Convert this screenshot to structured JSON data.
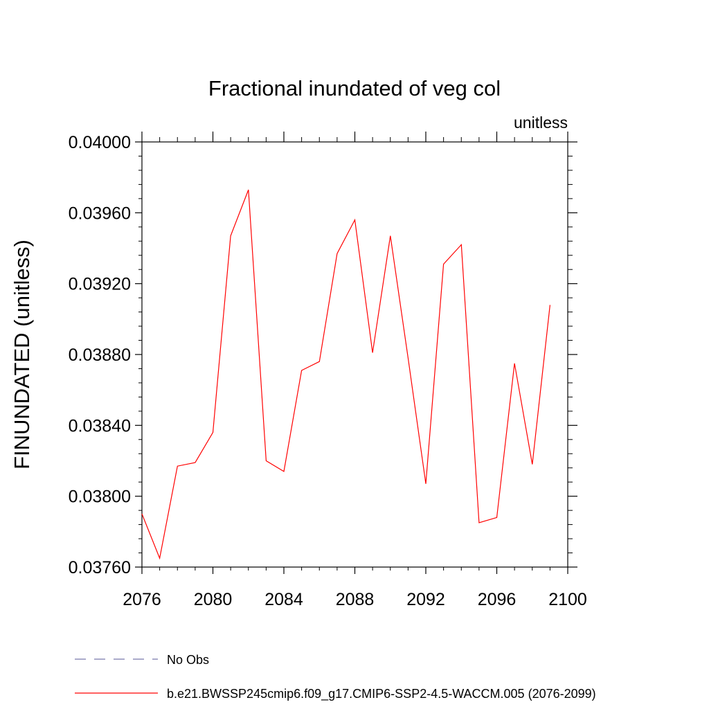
{
  "chart_data": {
    "type": "line",
    "title": "Fractional inundated of veg col",
    "units_label": "unitless",
    "xlabel": "",
    "ylabel": "FINUNDATED  (unitless)",
    "xlim": [
      2076,
      2100
    ],
    "ylim": [
      0.0376,
      0.04
    ],
    "x_ticks": [
      2076,
      2080,
      2084,
      2088,
      2092,
      2096,
      2100
    ],
    "x_tick_labels": [
      "2076",
      "2080",
      "2084",
      "2088",
      "2092",
      "2096",
      "2100"
    ],
    "y_ticks": [
      0.0376,
      0.038,
      0.0384,
      0.0388,
      0.0392,
      0.0396,
      0.04
    ],
    "y_tick_labels": [
      "0.03760",
      "0.03800",
      "0.03840",
      "0.03880",
      "0.03920",
      "0.03960",
      "0.04000"
    ],
    "grid": false,
    "legend_position": "bottom",
    "series": [
      {
        "name": "b.e21.BWSSP245cmip6.f09_g17.CMIP6-SSP2-4.5-WACCM.005 (2076-2099)",
        "color": "#ff0000",
        "style": "solid",
        "x": [
          2076,
          2077,
          2078,
          2079,
          2080,
          2081,
          2082,
          2083,
          2084,
          2085,
          2086,
          2087,
          2088,
          2089,
          2090,
          2091,
          2092,
          2093,
          2094,
          2095,
          2096,
          2097,
          2098,
          2099
        ],
        "y": [
          0.0379,
          0.03765,
          0.03817,
          0.03819,
          0.03836,
          0.03947,
          0.03973,
          0.0382,
          0.03814,
          0.03871,
          0.03876,
          0.03937,
          0.03956,
          0.03881,
          0.03947,
          0.03878,
          0.03807,
          0.03931,
          0.03942,
          0.03785,
          0.03788,
          0.03875,
          0.03818,
          0.03908
        ]
      }
    ],
    "legend": [
      {
        "label": "No Obs",
        "color": "#7777aa",
        "style": "dashed"
      },
      {
        "label": "b.e21.BWSSP245cmip6.f09_g17.CMIP6-SSP2-4.5-WACCM.005 (2076-2099)",
        "color": "#ff0000",
        "style": "solid"
      }
    ]
  }
}
